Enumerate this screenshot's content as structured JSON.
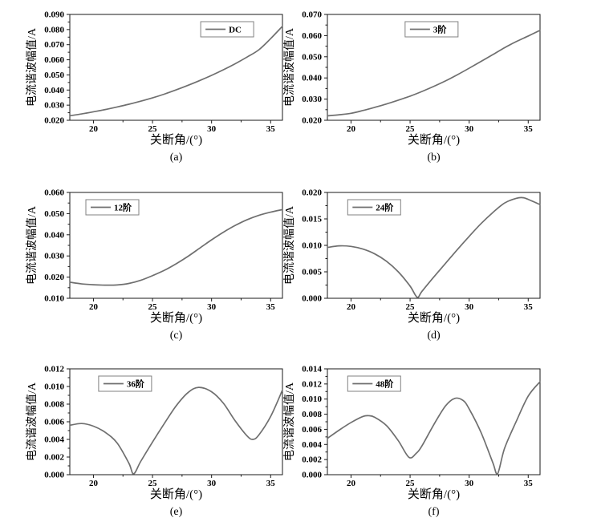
{
  "figure": {
    "background": "#ffffff",
    "colors": {
      "curve": "#6f6f6f",
      "axis": "#1a1a1a",
      "legend_border": "#808080",
      "text": "#000000"
    }
  },
  "chart_data": [
    {
      "id": "a",
      "type": "line",
      "caption": "(a)",
      "legend_label": "DC",
      "legend_position": "top-right-of-center",
      "legend_x_frac": 0.74,
      "xlabel": "关断角/(°)",
      "ylabel": "电流谐波幅值/A",
      "xlim": [
        18,
        36
      ],
      "xticks": [
        20,
        25,
        30,
        35
      ],
      "xticks_minor": [
        22.5,
        27.5,
        32.5
      ],
      "ylim": [
        0.02,
        0.09
      ],
      "ytick_step": 0.01,
      "ytick_decimals": 3,
      "grid": false,
      "points": [
        [
          18,
          0.023
        ],
        [
          19,
          0.0242
        ],
        [
          20,
          0.0256
        ],
        [
          21,
          0.0271
        ],
        [
          22,
          0.0288
        ],
        [
          23,
          0.0306
        ],
        [
          24,
          0.0326
        ],
        [
          25,
          0.0348
        ],
        [
          26,
          0.0373
        ],
        [
          27,
          0.0401
        ],
        [
          28,
          0.0431
        ],
        [
          29,
          0.0463
        ],
        [
          30,
          0.0497
        ],
        [
          31,
          0.0534
        ],
        [
          32,
          0.0574
        ],
        [
          33,
          0.0618
        ],
        [
          34,
          0.0666
        ],
        [
          35,
          0.074
        ],
        [
          36,
          0.0822
        ]
      ]
    },
    {
      "id": "b",
      "type": "line",
      "caption": "(b)",
      "legend_label": "3阶",
      "legend_position": "top-center",
      "legend_x_frac": 0.49,
      "xlabel": "关断角/(°)",
      "ylabel": "电流谐波幅值/A",
      "xlim": [
        18,
        36
      ],
      "xticks": [
        20,
        25,
        30,
        35
      ],
      "xticks_minor": [
        22.5,
        27.5,
        32.5
      ],
      "ylim": [
        0.02,
        0.07
      ],
      "ytick_step": 0.01,
      "ytick_decimals": 3,
      "grid": false,
      "points": [
        [
          18,
          0.0221
        ],
        [
          19,
          0.0226
        ],
        [
          20,
          0.0233
        ],
        [
          21,
          0.0246
        ],
        [
          22,
          0.0261
        ],
        [
          23,
          0.0277
        ],
        [
          24,
          0.0295
        ],
        [
          25,
          0.0314
        ],
        [
          26,
          0.0336
        ],
        [
          27,
          0.036
        ],
        [
          28,
          0.0386
        ],
        [
          29,
          0.0415
        ],
        [
          30,
          0.0446
        ],
        [
          31,
          0.0478
        ],
        [
          32,
          0.051
        ],
        [
          33,
          0.0543
        ],
        [
          34,
          0.0572
        ],
        [
          35,
          0.0598
        ],
        [
          36,
          0.0625
        ]
      ]
    },
    {
      "id": "c",
      "type": "line",
      "caption": "(c)",
      "legend_label": "12阶",
      "legend_position": "top-left",
      "legend_x_frac": 0.2,
      "xlabel": "关断角/(°)",
      "ylabel": "电流谐波幅值/A",
      "xlim": [
        18,
        36
      ],
      "xticks": [
        20,
        25,
        30,
        35
      ],
      "xticks_minor": [
        22.5,
        27.5,
        32.5
      ],
      "ylim": [
        0.01,
        0.06
      ],
      "ytick_step": 0.01,
      "ytick_decimals": 3,
      "grid": false,
      "points": [
        [
          18,
          0.0176
        ],
        [
          19,
          0.0168
        ],
        [
          20,
          0.0164
        ],
        [
          21,
          0.0162
        ],
        [
          22,
          0.0163
        ],
        [
          23,
          0.017
        ],
        [
          24,
          0.0185
        ],
        [
          25,
          0.0207
        ],
        [
          26,
          0.0232
        ],
        [
          27,
          0.0263
        ],
        [
          28,
          0.0298
        ],
        [
          29,
          0.0337
        ],
        [
          30,
          0.0376
        ],
        [
          31,
          0.0412
        ],
        [
          32,
          0.0444
        ],
        [
          33,
          0.0471
        ],
        [
          34,
          0.0492
        ],
        [
          35,
          0.0507
        ],
        [
          36,
          0.0519
        ]
      ]
    },
    {
      "id": "d",
      "type": "line",
      "caption": "(d)",
      "legend_label": "24阶",
      "legend_position": "top-left",
      "legend_x_frac": 0.22,
      "xlabel": "关断角/(°)",
      "ylabel": "电流谐波幅值/A",
      "xlim": [
        18,
        36
      ],
      "xticks": [
        20,
        25,
        30,
        35
      ],
      "xticks_minor": [
        22.5,
        27.5,
        32.5
      ],
      "ylim": [
        0.0,
        0.02
      ],
      "ytick_step": 0.005,
      "ytick_decimals": 3,
      "grid": false,
      "points": [
        [
          18,
          0.0096
        ],
        [
          19,
          0.0099
        ],
        [
          20,
          0.0098
        ],
        [
          21,
          0.0093
        ],
        [
          22,
          0.0084
        ],
        [
          23,
          0.007
        ],
        [
          24,
          0.005
        ],
        [
          25,
          0.0023
        ],
        [
          25.6,
          0.0002
        ],
        [
          26,
          0.0013
        ],
        [
          27,
          0.004
        ],
        [
          28,
          0.0066
        ],
        [
          29,
          0.0092
        ],
        [
          30,
          0.0117
        ],
        [
          31,
          0.0141
        ],
        [
          32,
          0.0162
        ],
        [
          33,
          0.018
        ],
        [
          34,
          0.0189
        ],
        [
          34.6,
          0.019
        ],
        [
          35.3,
          0.0184
        ],
        [
          36,
          0.0177
        ]
      ]
    },
    {
      "id": "e",
      "type": "line",
      "caption": "(e)",
      "legend_label": "36阶",
      "legend_position": "top-left",
      "legend_x_frac": 0.26,
      "xlabel": "关断角/(°)",
      "ylabel": "电流谐波幅值/A",
      "xlim": [
        18,
        36
      ],
      "xticks": [
        20,
        25,
        30,
        35
      ],
      "xticks_minor": [
        22.5,
        27.5,
        32.5
      ],
      "ylim": [
        0.0,
        0.012
      ],
      "ytick_step": 0.002,
      "ytick_decimals": 3,
      "grid": false,
      "points": [
        [
          18,
          0.0056
        ],
        [
          19,
          0.0058
        ],
        [
          20,
          0.0055
        ],
        [
          21,
          0.0048
        ],
        [
          22,
          0.0036
        ],
        [
          23,
          0.0013
        ],
        [
          23.4,
          0.0001
        ],
        [
          24,
          0.0015
        ],
        [
          25,
          0.0037
        ],
        [
          26,
          0.0058
        ],
        [
          27,
          0.0078
        ],
        [
          28,
          0.0093
        ],
        [
          28.9,
          0.0099
        ],
        [
          30,
          0.0094
        ],
        [
          31,
          0.0081
        ],
        [
          32,
          0.0061
        ],
        [
          33,
          0.0044
        ],
        [
          33.5,
          0.004
        ],
        [
          34,
          0.0045
        ],
        [
          35,
          0.0066
        ],
        [
          36,
          0.0096
        ]
      ]
    },
    {
      "id": "f",
      "type": "line",
      "caption": "(f)",
      "legend_label": "48阶",
      "legend_position": "top-left",
      "legend_x_frac": 0.22,
      "xlabel": "关断角/(°)",
      "ylabel": "电流谐波幅值/A",
      "xlim": [
        18,
        36
      ],
      "xticks": [
        20,
        25,
        30,
        35
      ],
      "xticks_minor": [
        22.5,
        27.5,
        32.5
      ],
      "ylim": [
        0.0,
        0.014
      ],
      "ytick_step": 0.002,
      "ytick_decimals": 3,
      "grid": false,
      "points": [
        [
          18,
          0.0048
        ],
        [
          19,
          0.0059
        ],
        [
          20,
          0.0069
        ],
        [
          21,
          0.0077
        ],
        [
          21.5,
          0.0078
        ],
        [
          22,
          0.0076
        ],
        [
          23,
          0.0065
        ],
        [
          24,
          0.0045
        ],
        [
          24.9,
          0.0023
        ],
        [
          25.5,
          0.0028
        ],
        [
          26,
          0.0038
        ],
        [
          27,
          0.0066
        ],
        [
          28,
          0.0091
        ],
        [
          28.8,
          0.0101
        ],
        [
          29.5,
          0.0098
        ],
        [
          30,
          0.0087
        ],
        [
          31,
          0.0056
        ],
        [
          32,
          0.0016
        ],
        [
          32.4,
          0.0001
        ],
        [
          33,
          0.0035
        ],
        [
          34,
          0.0071
        ],
        [
          35,
          0.0104
        ],
        [
          36,
          0.0123
        ]
      ]
    }
  ]
}
